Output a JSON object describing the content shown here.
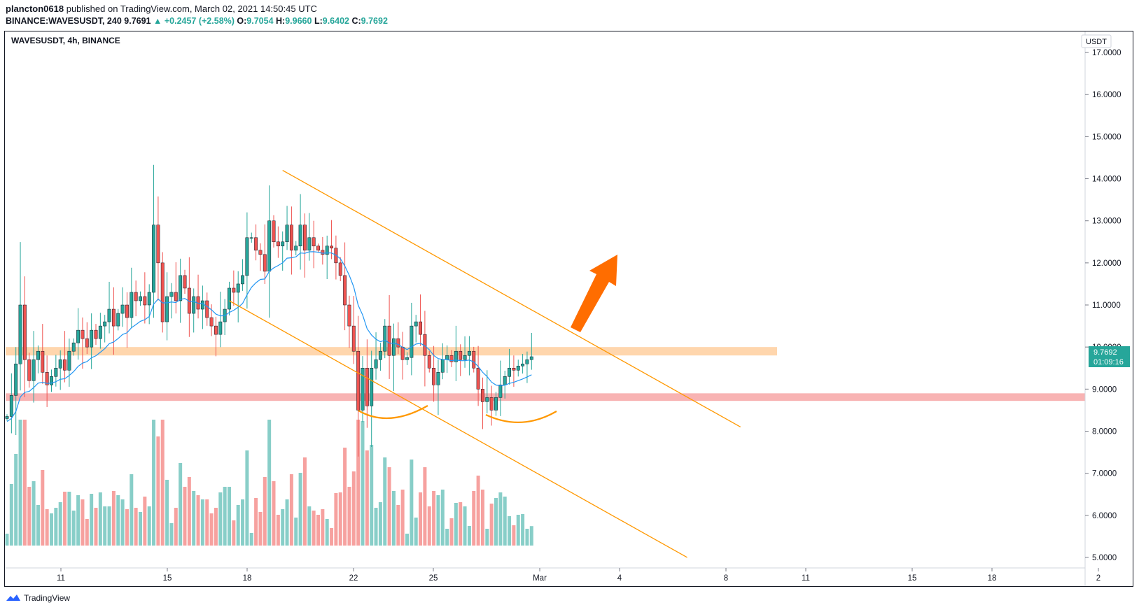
{
  "header": {
    "publisher": "plancton0618",
    "published_text": "published on TradingView.com, March 02, 2021 14:50:45 UTC",
    "symbol_full": "BINANCE:WAVESUSDT, 240",
    "last": "9.7691",
    "change": "+0.2457 (+2.58%)",
    "o_label": "O:",
    "o": "9.7054",
    "h_label": "H:",
    "h": "9.9660",
    "l_label": "L:",
    "l": "9.6402",
    "c_label": "C:",
    "c": "9.7692"
  },
  "chart_title": "WAVESUSDT, 4h, BINANCE",
  "currency_label": "USDT",
  "price_tag": {
    "price": "9.7692",
    "countdown": "01:09:16"
  },
  "footer": {
    "brand": "TradingView"
  },
  "colors": {
    "up": "#26a69a",
    "down": "#ef5350",
    "channel": "#ff9800",
    "ema": "#2196f3",
    "resistance_zone": "#ffcc99",
    "support_zone": "#f7a6a6"
  },
  "chart_data": {
    "type": "candlestick",
    "ylim": [
      4.75,
      17.5
    ],
    "y_ticks": [
      "17.0000",
      "16.0000",
      "15.0000",
      "14.0000",
      "13.0000",
      "12.0000",
      "11.0000",
      "10.0000",
      "9.0000",
      "8.0000",
      "7.0000",
      "6.0000",
      "5.0000"
    ],
    "x_ticks": [
      {
        "label": "11",
        "day": 11
      },
      {
        "label": "15",
        "day": 15
      },
      {
        "label": "18",
        "day": 18
      },
      {
        "label": "22",
        "day": 22
      },
      {
        "label": "25",
        "day": 25
      },
      {
        "label": "Mar",
        "day": 29
      },
      {
        "label": "4",
        "day": 32
      },
      {
        "label": "8",
        "day": 36
      },
      {
        "label": "11",
        "day": 39
      },
      {
        "label": "15",
        "day": 43
      },
      {
        "label": "18",
        "day": 46
      },
      {
        "label": "2",
        "day": 50
      }
    ],
    "closes": [
      8.35,
      8.85,
      9.6,
      11.0,
      9.7,
      9.2,
      9.7,
      9.9,
      9.4,
      9.1,
      9.3,
      9.5,
      9.7,
      9.45,
      9.9,
      10.1,
      10.4,
      10.2,
      10.0,
      10.4,
      10.2,
      10.5,
      10.6,
      10.9,
      10.5,
      10.8,
      11.0,
      10.7,
      11.3,
      11.1,
      11.2,
      11.0,
      11.3,
      12.9,
      12.0,
      10.6,
      11.2,
      11.3,
      11.1,
      11.7,
      11.4,
      10.8,
      11.2,
      10.9,
      11.1,
      10.7,
      10.5,
      10.3,
      10.6,
      10.9,
      11.4,
      11.3,
      11.5,
      11.7,
      12.6,
      12.6,
      12.3,
      12.2,
      11.8,
      13.0,
      12.5,
      12.4,
      12.5,
      12.9,
      12.3,
      12.4,
      12.9,
      12.3,
      12.6,
      12.4,
      12.3,
      12.2,
      12.4,
      12.35,
      12.0,
      11.7,
      11.0,
      10.5,
      9.9,
      8.5,
      9.5,
      8.6,
      9.5,
      9.7,
      9.9,
      10.5,
      9.8,
      10.2,
      10.0,
      9.7,
      9.75,
      10.5,
      10.6,
      10.3,
      9.8,
      9.5,
      9.1,
      9.4,
      9.7,
      9.8,
      9.65,
      9.9,
      9.7,
      9.8,
      9.9,
      9.5,
      9.0,
      8.7,
      8.8,
      8.5,
      8.8,
      9.1,
      9.3,
      9.5,
      9.45,
      9.55,
      9.6,
      9.7,
      9.77
    ],
    "volume_note": "volume histogram bars",
    "annotations": [
      {
        "type": "descending_channel_upper",
        "from": {
          "bar": 62,
          "price": 14.2
        },
        "to": {
          "bar": 165,
          "price": 8.1
        }
      },
      {
        "type": "descending_channel_lower",
        "from": {
          "bar": 50,
          "price": 11.1
        },
        "to": {
          "bar": 153,
          "price": 5.0
        }
      },
      {
        "type": "resistance_zone",
        "low": 9.8,
        "high": 10.0
      },
      {
        "type": "support_zone",
        "low": 8.72,
        "high": 8.9
      },
      {
        "type": "arrow",
        "direction": "up"
      }
    ]
  }
}
